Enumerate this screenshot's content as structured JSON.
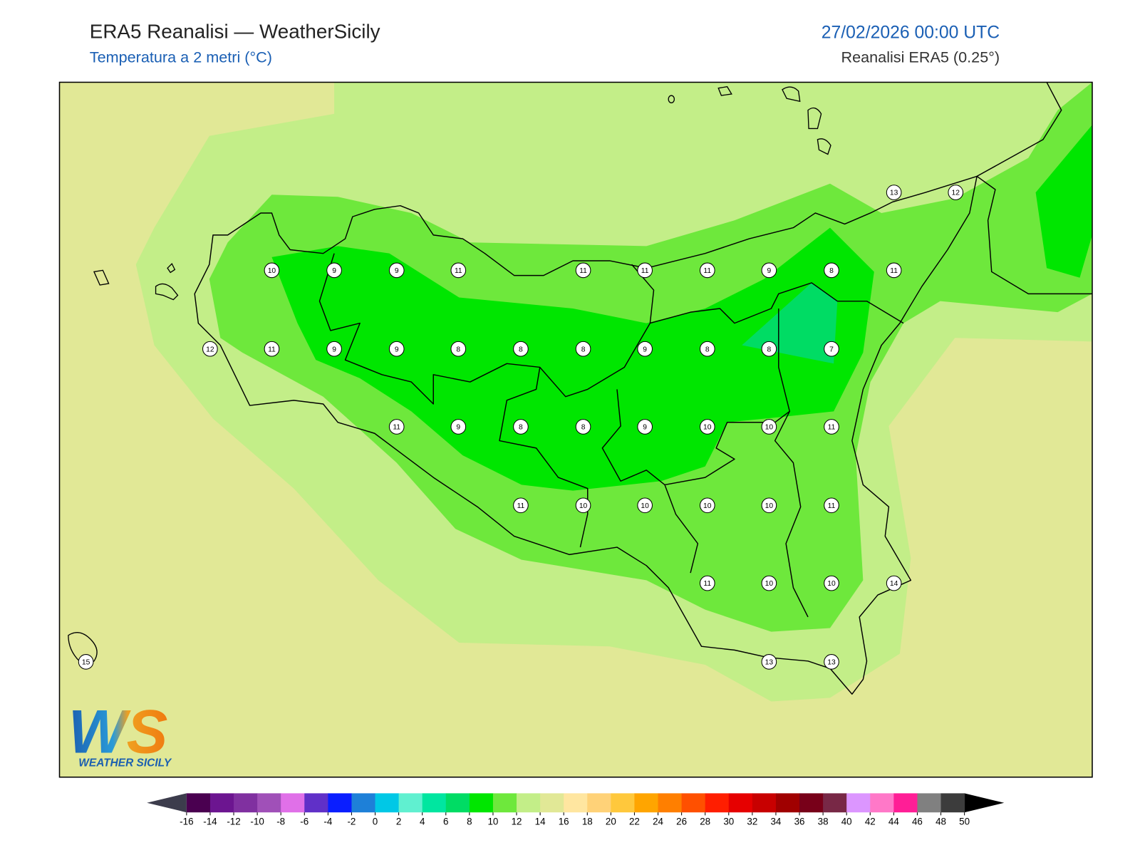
{
  "header": {
    "title": "ERA5 Reanalisi — WeatherSicily",
    "subtitle": "Temperatura a 2 metri (°C)",
    "datetime": "27/02/2026 00:00 UTC",
    "source": "Reanalisi ERA5 (0.25°)"
  },
  "map": {
    "station_values": [
      13,
      12,
      10,
      9,
      9,
      11,
      11,
      11,
      11,
      9,
      8,
      11,
      12,
      11,
      9,
      9,
      8,
      8,
      8,
      9,
      8,
      8,
      7,
      11,
      9,
      8,
      8,
      9,
      10,
      10,
      11,
      11,
      10,
      10,
      10,
      10,
      11,
      11,
      10,
      10,
      14,
      15,
      13,
      13
    ]
  },
  "colorbar": {
    "ticks": [
      -16,
      -14,
      -12,
      -10,
      -8,
      -6,
      -4,
      -2,
      0,
      2,
      4,
      6,
      8,
      10,
      12,
      14,
      16,
      18,
      20,
      22,
      24,
      26,
      28,
      30,
      32,
      34,
      36,
      38,
      40,
      42,
      44,
      46,
      48,
      50
    ],
    "colors": [
      "#4a0050",
      "#6c1590",
      "#8030a0",
      "#a050b8",
      "#e070e8",
      "#6030c8",
      "#0a1eff",
      "#1e80d8",
      "#00c8e6",
      "#60f0d0",
      "#00e6a0",
      "#00dc64",
      "#00e600",
      "#6ee83c",
      "#c3ee88",
      "#e1e896",
      "#ffe6a0",
      "#ffd278",
      "#ffc83c",
      "#ffa500",
      "#ff7f00",
      "#ff5000",
      "#ff1e00",
      "#e60000",
      "#c80000",
      "#a00000",
      "#780019",
      "#782846",
      "#dc96ff",
      "#ff78c8",
      "#ff1e96",
      "#808080",
      "#3c3c3c"
    ],
    "under_color": "#3c3c4c",
    "over_color": "#000000"
  },
  "logo": {
    "letters": "WS",
    "name": "WEATHER SICILY"
  }
}
